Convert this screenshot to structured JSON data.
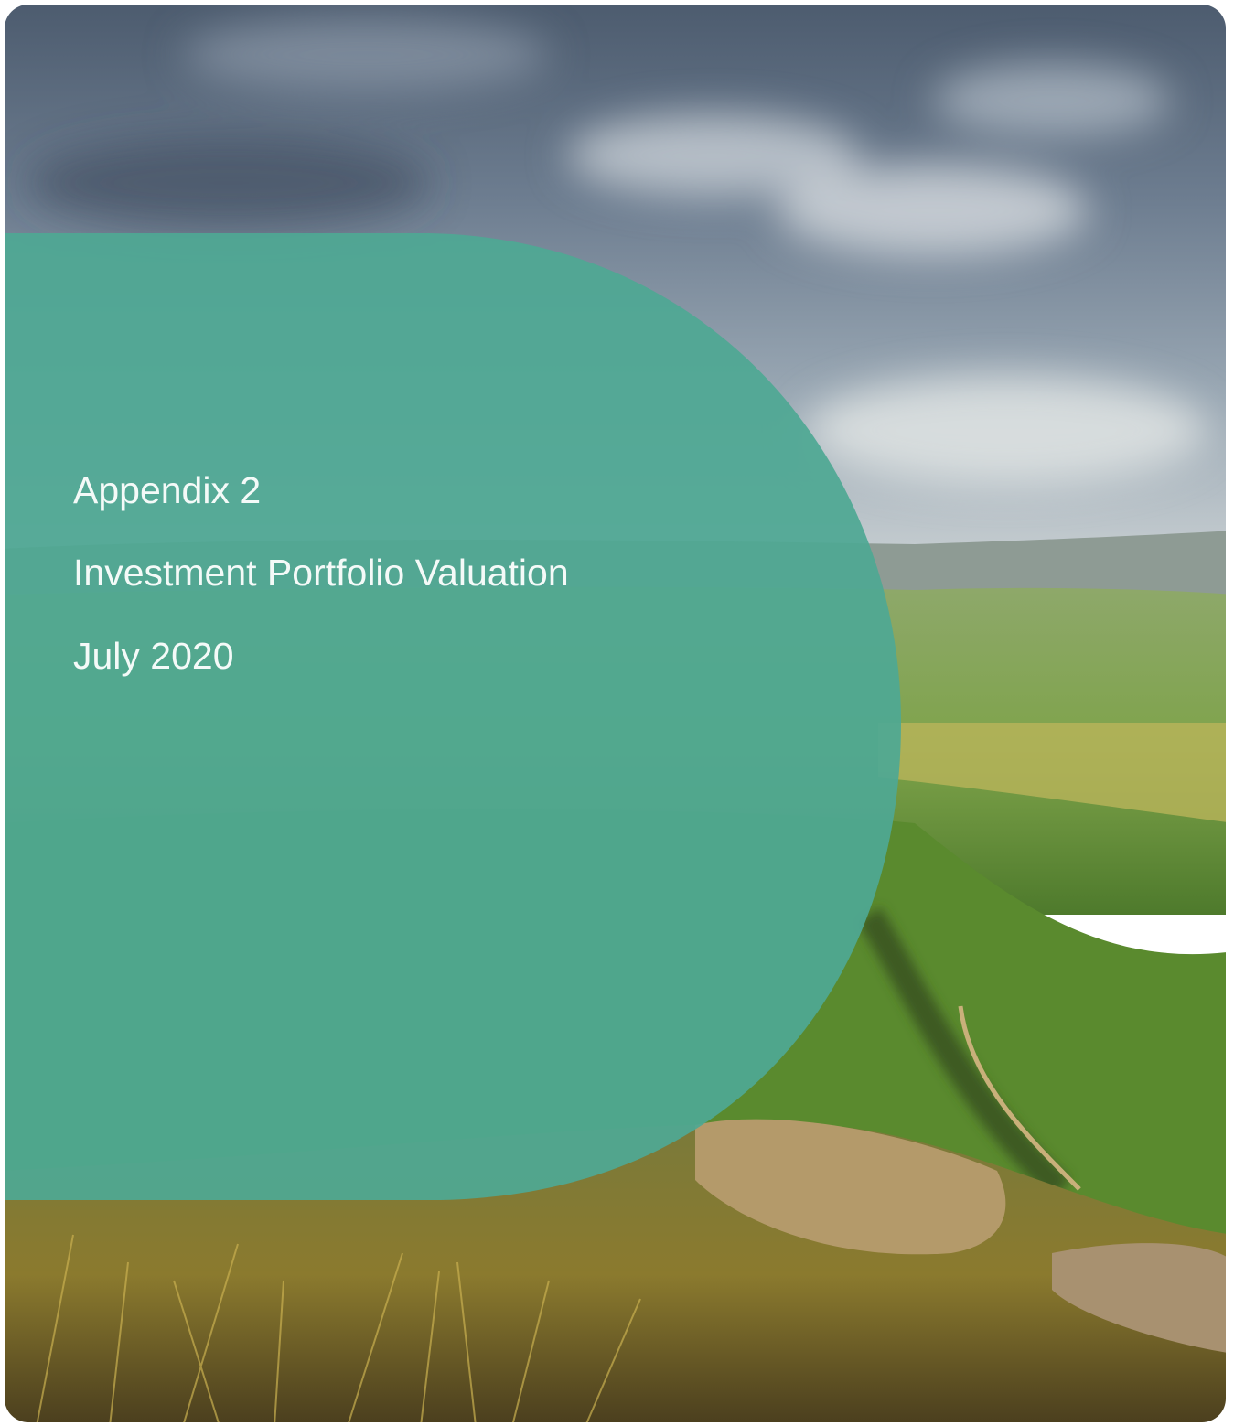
{
  "cover": {
    "appendix": "Appendix 2",
    "title": "Investment Portfolio Valuation",
    "date": "July 2020"
  }
}
